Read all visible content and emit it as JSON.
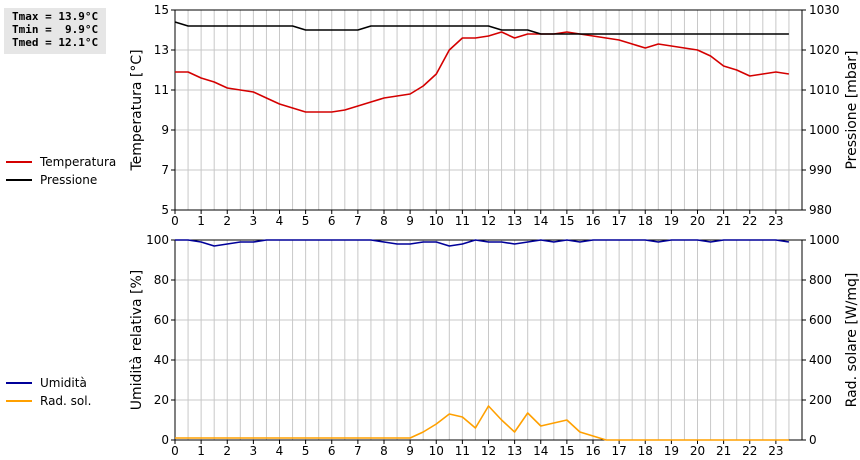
{
  "stats": {
    "tmax": "Tmax = 13.9°C",
    "tmin": "Tmin =  9.9°C",
    "tmed": "Tmed = 12.1°C"
  },
  "colors": {
    "temperature": "#d40000",
    "pressure": "#000000",
    "humidity": "#000099",
    "solar": "#ffa000",
    "grid": "#c8c8c8"
  },
  "chart_data": [
    {
      "type": "line",
      "title": "",
      "xlabel": "",
      "xlim": [
        0,
        24
      ],
      "x_ticks": [
        "0",
        "1",
        "2",
        "3",
        "4",
        "5",
        "6",
        "7",
        "8",
        "9",
        "10",
        "11",
        "12",
        "13",
        "14",
        "15",
        "16",
        "17",
        "18",
        "19",
        "20",
        "21",
        "22",
        "23"
      ],
      "ylabel": "Temperatura [°C]",
      "ylim": [
        5,
        15
      ],
      "y_ticks": [
        "5",
        "7",
        "9",
        "11",
        "13",
        "15"
      ],
      "y2label": "Pressione [mbar]",
      "y2lim": [
        980,
        1030
      ],
      "y2_ticks": [
        "980",
        "990",
        "1000",
        "1010",
        "1020",
        "1030"
      ],
      "grid": true,
      "legend": "left",
      "series": [
        {
          "name": "Temperatura",
          "axis": "left",
          "x": [
            0,
            0.5,
            1,
            1.5,
            2,
            2.5,
            3,
            3.5,
            4,
            4.5,
            5,
            5.5,
            6,
            6.5,
            7,
            7.5,
            8,
            8.5,
            9,
            9.5,
            10,
            10.5,
            11,
            11.5,
            12,
            12.5,
            13,
            13.5,
            14,
            14.5,
            15,
            15.5,
            16,
            16.5,
            17,
            17.5,
            18,
            18.5,
            19,
            19.5,
            20,
            20.5,
            21,
            21.5,
            22,
            22.5,
            23,
            23.5
          ],
          "values": [
            11.9,
            11.9,
            11.6,
            11.4,
            11.1,
            11.0,
            10.9,
            10.6,
            10.3,
            10.1,
            9.9,
            9.9,
            9.9,
            10.0,
            10.2,
            10.4,
            10.6,
            10.7,
            10.8,
            11.2,
            11.8,
            13.0,
            13.6,
            13.6,
            13.7,
            13.9,
            13.6,
            13.8,
            13.8,
            13.8,
            13.9,
            13.8,
            13.7,
            13.6,
            13.5,
            13.3,
            13.1,
            13.3,
            13.2,
            13.1,
            13.0,
            12.7,
            12.2,
            12.0,
            11.7,
            11.8,
            11.9,
            11.8
          ]
        },
        {
          "name": "Pressione",
          "axis": "right",
          "x": [
            0,
            0.5,
            1,
            1.5,
            2,
            2.5,
            3,
            3.5,
            4,
            4.5,
            5,
            5.5,
            6,
            6.5,
            7,
            7.5,
            8,
            8.5,
            9,
            9.5,
            10,
            10.5,
            11,
            11.5,
            12,
            12.5,
            13,
            13.5,
            14,
            14.5,
            15,
            15.5,
            16,
            16.5,
            17,
            17.5,
            18,
            18.5,
            19,
            19.5,
            20,
            20.5,
            21,
            21.5,
            22,
            22.5,
            23,
            23.5
          ],
          "values": [
            1027,
            1026,
            1026,
            1026,
            1026,
            1026,
            1026,
            1026,
            1026,
            1026,
            1025,
            1025,
            1025,
            1025,
            1025,
            1026,
            1026,
            1026,
            1026,
            1026,
            1026,
            1026,
            1026,
            1026,
            1026,
            1025,
            1025,
            1025,
            1024,
            1024,
            1024,
            1024,
            1024,
            1024,
            1024,
            1024,
            1024,
            1024,
            1024,
            1024,
            1024,
            1024,
            1024,
            1024,
            1024,
            1024,
            1024,
            1024
          ]
        }
      ]
    },
    {
      "type": "line",
      "title": "",
      "xlabel": "",
      "xlim": [
        0,
        24
      ],
      "x_ticks": [
        "0",
        "1",
        "2",
        "3",
        "4",
        "5",
        "6",
        "7",
        "8",
        "9",
        "10",
        "11",
        "12",
        "13",
        "14",
        "15",
        "16",
        "17",
        "18",
        "19",
        "20",
        "21",
        "22",
        "23"
      ],
      "ylabel": "Umidità relativa [%]",
      "ylim": [
        0,
        100
      ],
      "y_ticks": [
        "0",
        "20",
        "40",
        "60",
        "80",
        "100"
      ],
      "y2label": "Rad. solare [W/mq]",
      "y2lim": [
        0,
        1000
      ],
      "y2_ticks": [
        "0",
        "200",
        "400",
        "600",
        "800",
        "1000"
      ],
      "grid": true,
      "legend": "left",
      "series": [
        {
          "name": "Umidità",
          "axis": "left",
          "x": [
            0,
            0.5,
            1,
            1.5,
            2,
            2.5,
            3,
            3.5,
            4,
            4.5,
            5,
            5.5,
            6,
            6.5,
            7,
            7.5,
            8,
            8.5,
            9,
            9.5,
            10,
            10.5,
            11,
            11.5,
            12,
            12.5,
            13,
            13.5,
            14,
            14.5,
            15,
            15.5,
            16,
            16.5,
            17,
            17.5,
            18,
            18.5,
            19,
            19.5,
            20,
            20.5,
            21,
            21.5,
            22,
            22.5,
            23,
            23.5
          ],
          "values": [
            100,
            100,
            99,
            97,
            98,
            99,
            99,
            100,
            100,
            100,
            100,
            100,
            100,
            100,
            100,
            100,
            99,
            98,
            98,
            99,
            99,
            97,
            98,
            100,
            99,
            99,
            98,
            99,
            100,
            99,
            100,
            99,
            100,
            100,
            100,
            100,
            100,
            99,
            100,
            100,
            100,
            99,
            100,
            100,
            100,
            100,
            100,
            99
          ]
        },
        {
          "name": "Rad. sol.",
          "axis": "right",
          "x": [
            0,
            0.5,
            1,
            1.5,
            2,
            2.5,
            3,
            3.5,
            4,
            4.5,
            5,
            5.5,
            6,
            6.5,
            7,
            7.5,
            8,
            8.5,
            9,
            9.5,
            10,
            10.5,
            11,
            11.5,
            12,
            12.5,
            13,
            13.5,
            14,
            14.5,
            15,
            15.5,
            16,
            16.5,
            17,
            17.5,
            18,
            18.5,
            19,
            19.5,
            20,
            20.5,
            21,
            21.5,
            22,
            22.5,
            23,
            23.5
          ],
          "values": [
            10,
            10,
            10,
            10,
            10,
            10,
            10,
            10,
            10,
            10,
            10,
            10,
            10,
            10,
            10,
            10,
            10,
            10,
            10,
            40,
            80,
            130,
            115,
            60,
            170,
            100,
            40,
            135,
            70,
            85,
            100,
            40,
            20,
            0,
            0,
            0,
            0,
            0,
            0,
            0,
            0,
            0,
            0,
            0,
            0,
            0,
            0,
            0
          ]
        }
      ]
    }
  ]
}
